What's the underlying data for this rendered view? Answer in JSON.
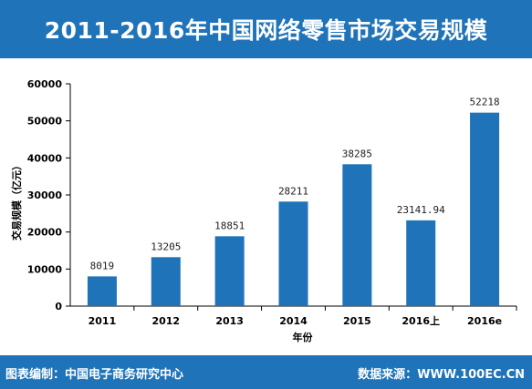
{
  "header": {
    "title": "2011-2016年中国网络零售市场交易规模"
  },
  "footer": {
    "left": "图表编制：中国电子商务研究中心",
    "right": "数据来源：WWW.100EC.CN"
  },
  "colors": {
    "bar": "#1e73b9",
    "banner": "#1e73b9"
  },
  "chart_data": {
    "type": "bar",
    "title": "2011-2016年中国网络零售市场交易规模",
    "xlabel": "年份",
    "ylabel": "交易规模（亿元）",
    "categories": [
      "2011",
      "2012",
      "2013",
      "2014",
      "2015",
      "2016上",
      "2016e"
    ],
    "values": [
      8019,
      13205,
      18851,
      28211,
      38285,
      23141.94,
      52218
    ],
    "value_labels": [
      "8019",
      "13205",
      "18851",
      "28211",
      "38285",
      "23141.94",
      "52218"
    ],
    "y_ticks": [
      "0",
      "10000",
      "20000",
      "30000",
      "40000",
      "50000",
      "60000"
    ],
    "ylim": [
      0,
      60000
    ],
    "grid": false,
    "legend": "none"
  }
}
